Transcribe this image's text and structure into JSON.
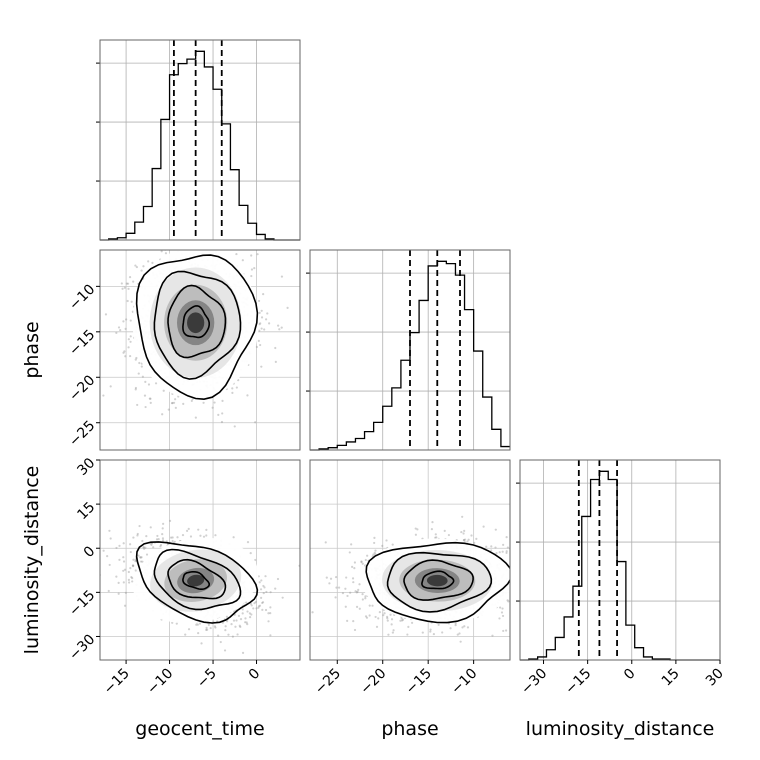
{
  "chart_data": {
    "type": "corner",
    "parameters": [
      {
        "name": "geocent_time",
        "quantiles": [
          -9.5,
          -7.0,
          -4.0
        ],
        "range": [
          -18.0,
          5.0
        ],
        "ticks": [
          -15,
          -10,
          -5,
          0
        ],
        "tick_labels": [
          "−15",
          "−10",
          "−5",
          "0"
        ]
      },
      {
        "name": "phase",
        "quantiles": [
          -17.0,
          -14.0,
          -11.5
        ],
        "range": [
          -28.0,
          -6.0
        ],
        "ticks": [
          -25,
          -20,
          -15,
          -10
        ],
        "tick_labels": [
          "−25",
          "−20",
          "−15",
          "−10"
        ]
      },
      {
        "name": "luminosity_distance",
        "quantiles": [
          -18.0,
          -11.0,
          -5.0
        ],
        "range": [
          -38.0,
          30.0
        ],
        "ticks": [
          -30,
          -15,
          0,
          15,
          30
        ],
        "tick_labels": [
          "−30",
          "−15",
          "0",
          "15",
          "30"
        ]
      }
    ],
    "histograms": [
      {
        "parameter": "geocent_time",
        "bin_edges": [
          -18,
          -17,
          -16,
          -15,
          -14,
          -13,
          -12,
          -11,
          -10,
          -9,
          -8,
          -7,
          -6,
          -5,
          -4,
          -3,
          -2,
          -1,
          0,
          1,
          2,
          3,
          4,
          5
        ],
        "counts": [
          0,
          1,
          2,
          6,
          16,
          30,
          64,
          108,
          148,
          158,
          162,
          169,
          155,
          135,
          104,
          63,
          31,
          15,
          5,
          1,
          0,
          0,
          0
        ]
      },
      {
        "parameter": "phase",
        "bin_edges": [
          -28,
          -27,
          -26,
          -25,
          -24,
          -23,
          -22,
          -21,
          -20,
          -19,
          -18,
          -17,
          -16,
          -15,
          -14,
          -13,
          -12,
          -11,
          -10,
          -9,
          -8,
          -7,
          -6
        ],
        "counts": [
          0,
          1,
          2,
          4,
          7,
          10,
          16,
          24,
          38,
          54,
          78,
          102,
          130,
          160,
          164,
          162,
          152,
          122,
          86,
          46,
          18,
          3
        ]
      },
      {
        "parameter": "luminosity_distance",
        "bin_edges": [
          -38,
          -35,
          -32,
          -29,
          -26,
          -23,
          -20,
          -17,
          -14,
          -11,
          -8,
          -5,
          -2,
          1,
          4,
          7,
          10,
          13,
          16,
          19,
          22,
          25,
          28,
          30
        ],
        "counts": [
          0,
          1,
          3,
          10,
          22,
          42,
          72,
          140,
          176,
          184,
          176,
          96,
          34,
          12,
          3,
          1,
          1,
          0,
          0,
          0,
          0,
          0,
          0
        ]
      }
    ],
    "pairs": [
      {
        "x": "geocent_time",
        "y": "phase",
        "mean": [
          -7.0,
          -14.0
        ],
        "sd": [
          3.3,
          3.8
        ],
        "corr": 0.0
      },
      {
        "x": "geocent_time",
        "y": "luminosity_distance",
        "mean": [
          -7.0,
          -11.0
        ],
        "sd": [
          3.3,
          6.5
        ],
        "corr": -0.35
      },
      {
        "x": "phase",
        "y": "luminosity_distance",
        "mean": [
          -14.0,
          -11.0
        ],
        "sd": [
          3.8,
          6.5
        ],
        "corr": 0.05
      }
    ],
    "grid": true,
    "quantile_line_style": "dashed"
  }
}
